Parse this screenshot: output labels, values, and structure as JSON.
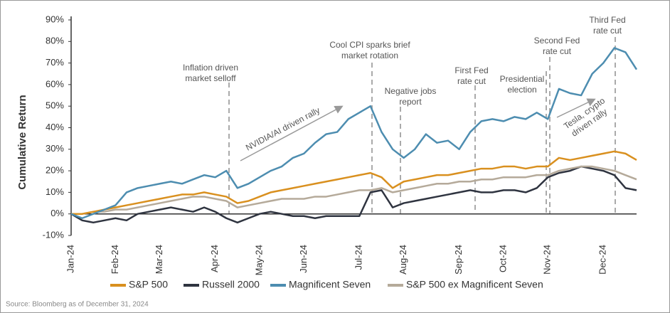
{
  "chart_data": {
    "type": "line",
    "y_label": "Cumulative Return",
    "source": "Source: Bloomberg as of December 31, 2024",
    "categories": [
      "Jan-24",
      null,
      null,
      null,
      "Feb-24",
      null,
      null,
      null,
      "Mar-24",
      null,
      null,
      null,
      null,
      "Apr-24",
      null,
      null,
      null,
      "May-24",
      null,
      null,
      null,
      "Jun-24",
      null,
      null,
      null,
      null,
      "Jul-24",
      null,
      null,
      null,
      "Aug-24",
      null,
      null,
      null,
      null,
      "Sep-24",
      null,
      null,
      null,
      "Oct-24",
      null,
      null,
      null,
      "Nov-24",
      null,
      null,
      null,
      null,
      "Dec-24",
      null,
      null,
      null
    ],
    "series": [
      {
        "name": "S&P 500",
        "color": "#d9901f",
        "values": [
          0,
          0,
          1,
          2,
          3,
          4,
          5,
          6,
          7,
          8,
          9,
          9,
          10,
          9,
          8,
          5,
          6,
          8,
          10,
          11,
          12,
          13,
          14,
          15,
          16,
          17,
          18,
          19,
          17,
          12,
          15,
          16,
          17,
          18,
          18,
          19,
          20,
          21,
          21,
          22,
          22,
          21,
          22,
          22,
          26,
          25,
          26,
          27,
          28,
          29,
          28,
          25
        ]
      },
      {
        "name": "Russell 2000",
        "color": "#2f3440",
        "values": [
          0,
          -3,
          -4,
          -3,
          -2,
          -3,
          0,
          1,
          2,
          3,
          2,
          1,
          3,
          1,
          -2,
          -4,
          -2,
          0,
          1,
          0,
          -1,
          -1,
          -2,
          -1,
          -1,
          -1,
          -1,
          10,
          11,
          3,
          5,
          6,
          7,
          8,
          9,
          10,
          11,
          10,
          10,
          11,
          11,
          10,
          12,
          17,
          19,
          20,
          22,
          21,
          20,
          18,
          12,
          11
        ]
      },
      {
        "name": "Magnificent Seven",
        "color": "#4d8db0",
        "values": [
          0,
          -2,
          0,
          2,
          4,
          10,
          12,
          13,
          14,
          15,
          14,
          16,
          18,
          17,
          20,
          12,
          14,
          17,
          20,
          22,
          26,
          28,
          33,
          37,
          38,
          44,
          47,
          50,
          38,
          30,
          26,
          30,
          37,
          33,
          34,
          30,
          38,
          43,
          44,
          43,
          45,
          44,
          47,
          44,
          58,
          56,
          55,
          65,
          70,
          77,
          75,
          67
        ]
      },
      {
        "name": "S&P 500 ex Magnificent Seven",
        "color": "#b5aa9a",
        "values": [
          0,
          0,
          1,
          1,
          2,
          2,
          3,
          4,
          5,
          6,
          7,
          8,
          8,
          7,
          6,
          3,
          4,
          5,
          6,
          7,
          7,
          7,
          8,
          8,
          9,
          10,
          11,
          11,
          12,
          10,
          11,
          12,
          13,
          14,
          14,
          15,
          15,
          16,
          16,
          17,
          17,
          17,
          18,
          18,
          20,
          21,
          22,
          22,
          21,
          20,
          18,
          16
        ]
      }
    ],
    "ylim": [
      -10,
      90
    ],
    "yticks": [
      {
        "value": -10,
        "label": "-10%"
      },
      {
        "value": 0,
        "label": "0%"
      },
      {
        "value": 10,
        "label": "10%"
      },
      {
        "value": 20,
        "label": "20%"
      },
      {
        "value": 30,
        "label": "30%"
      },
      {
        "value": 40,
        "label": "40%"
      },
      {
        "value": 50,
        "label": "50%"
      },
      {
        "value": 60,
        "label": "60%"
      },
      {
        "value": 70,
        "label": "70%"
      },
      {
        "value": 80,
        "label": "80%"
      },
      {
        "value": 90,
        "label": "90%"
      }
    ],
    "annotations": [
      {
        "text": [
          "Inflation driven",
          "market selloff"
        ]
      },
      {
        "text": [
          "Cool CPI sparks brief",
          "market rotation"
        ]
      },
      {
        "text": [
          "Negative jobs",
          "report"
        ]
      },
      {
        "text": [
          "First Fed",
          "rate cut"
        ]
      },
      {
        "text": [
          "Presidential",
          "election"
        ]
      },
      {
        "text": [
          "Second Fed",
          "rate cut"
        ]
      },
      {
        "text": [
          "Third Fed",
          "rate cut"
        ]
      },
      {
        "text": [
          "NVIDIA/AI driven rally"
        ]
      },
      {
        "text": [
          "Tesla, crypto",
          "driven rally"
        ]
      }
    ]
  }
}
